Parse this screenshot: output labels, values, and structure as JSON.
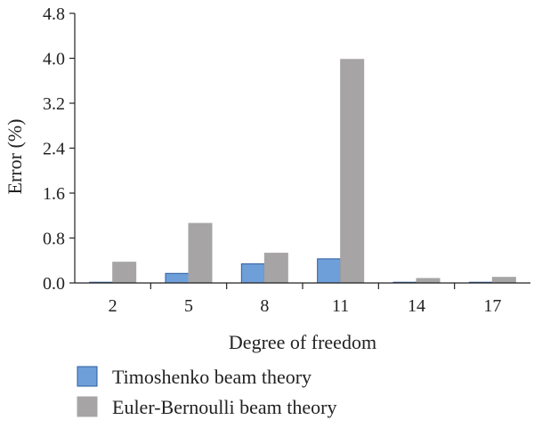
{
  "chart_data": {
    "type": "bar",
    "xlabel": "Degree of freedom",
    "ylabel": "Error (%)",
    "categories": [
      "2",
      "5",
      "8",
      "11",
      "14",
      "17"
    ],
    "ylim": [
      0,
      4.8
    ],
    "yticks": [
      "0.0",
      "0.8",
      "1.6",
      "2.4",
      "3.2",
      "4.0",
      "4.8"
    ],
    "grid": false,
    "legend_position": "bottom",
    "series": [
      {
        "name": "Timoshenko beam theory",
        "values": [
          0.0,
          0.17,
          0.34,
          0.43,
          0.01,
          0.0
        ],
        "color": "#6f9fd8",
        "stroke": "#2a5d9f"
      },
      {
        "name": "Euler-Bernoulli beam theory",
        "values": [
          0.37,
          1.06,
          0.53,
          3.98,
          0.08,
          0.1
        ],
        "color": "#a6a4a5",
        "stroke": "#a6a4a5"
      }
    ]
  }
}
